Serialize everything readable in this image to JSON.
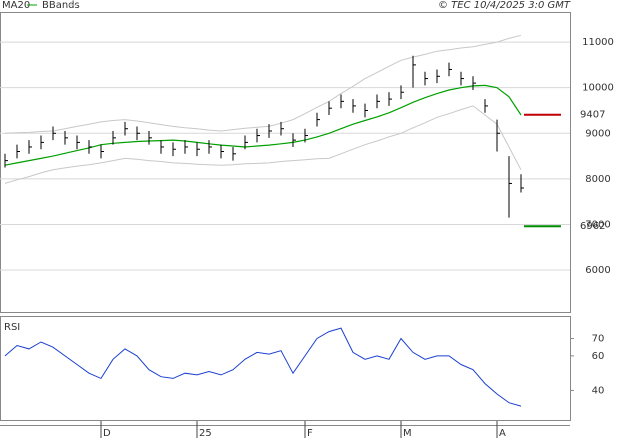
{
  "chart_data": [
    {
      "type": "ohlc",
      "source": "© TEC 10/4/2025 3:0 GMT",
      "categories": [
        null,
        null,
        null,
        null,
        null,
        null,
        null,
        null,
        "D",
        null,
        null,
        null,
        null,
        null,
        null,
        null,
        "25",
        null,
        null,
        null,
        null,
        null,
        null,
        null,
        null,
        "F",
        null,
        null,
        null,
        null,
        null,
        null,
        null,
        "M",
        null,
        null,
        null,
        null,
        null,
        null,
        null,
        "A",
        null,
        null
      ],
      "close": [
        8400,
        8600,
        8700,
        8800,
        9000,
        8900,
        8800,
        8700,
        8600,
        8900,
        9100,
        9000,
        8900,
        8700,
        8650,
        8700,
        8650,
        8700,
        8600,
        8550,
        8800,
        8950,
        9050,
        9100,
        8850,
        8950,
        9300,
        9550,
        9700,
        9600,
        9500,
        9700,
        9750,
        9900,
        10500,
        10200,
        10250,
        10400,
        10200,
        10100,
        9600,
        9000,
        7900,
        7800
      ],
      "high": [
        8550,
        8750,
        8850,
        8950,
        9150,
        9050,
        8950,
        8850,
        8750,
        9050,
        9250,
        9150,
        9050,
        8850,
        8800,
        8850,
        8800,
        8850,
        8750,
        8700,
        8950,
        9100,
        9200,
        9250,
        9000,
        9100,
        9450,
        9700,
        9850,
        9750,
        9650,
        9850,
        9900,
        10050,
        10700,
        10350,
        10400,
        10550,
        10350,
        10250,
        9750,
        9300,
        8500,
        8100
      ],
      "low": [
        8250,
        8450,
        8550,
        8650,
        8850,
        8750,
        8650,
        8550,
        8450,
        8750,
        8950,
        8850,
        8750,
        8550,
        8500,
        8550,
        8500,
        8550,
        8450,
        8400,
        8650,
        8800,
        8900,
        8950,
        8700,
        8800,
        9150,
        9400,
        9550,
        9450,
        9350,
        9550,
        9600,
        9750,
        10000,
        10050,
        10100,
        10250,
        10050,
        9950,
        9450,
        8600,
        7150,
        7700
      ],
      "color": "#000000",
      "series": [
        {
          "name": "MA20",
          "color": "#00a000",
          "values": [
            8300,
            8350,
            8400,
            8450,
            8500,
            8560,
            8620,
            8680,
            8750,
            8780,
            8800,
            8820,
            8830,
            8840,
            8850,
            8830,
            8800,
            8770,
            8740,
            8720,
            8700,
            8720,
            8740,
            8770,
            8800,
            8850,
            8920,
            9000,
            9100,
            9200,
            9280,
            9360,
            9450,
            9560,
            9680,
            9780,
            9870,
            9950,
            10000,
            10040,
            10050,
            10000,
            9800,
            9400
          ]
        },
        {
          "name": "BBands",
          "color": "#c8c8c8",
          "upper": [
            9000,
            9010,
            9020,
            9040,
            9050,
            9100,
            9150,
            9200,
            9250,
            9280,
            9300,
            9270,
            9230,
            9190,
            9150,
            9120,
            9100,
            9070,
            9050,
            9080,
            9110,
            9130,
            9150,
            9220,
            9300,
            9430,
            9570,
            9700,
            9870,
            10030,
            10200,
            10330,
            10470,
            10600,
            10670,
            10730,
            10800,
            10830,
            10870,
            10900,
            10950,
            11000,
            11080,
            11150
          ],
          "lower": [
            7900,
            7980,
            8050,
            8130,
            8200,
            8240,
            8280,
            8310,
            8350,
            8400,
            8450,
            8430,
            8400,
            8380,
            8350,
            8340,
            8320,
            8310,
            8300,
            8310,
            8330,
            8340,
            8350,
            8380,
            8400,
            8420,
            8440,
            8450,
            8550,
            8650,
            8750,
            8830,
            8920,
            9000,
            9120,
            9230,
            9350,
            9430,
            9520,
            9600,
            9400,
            9200,
            8700,
            8200
          ]
        }
      ],
      "levels": [
        {
          "value": 9407,
          "color": "#c00000"
        },
        {
          "value": 6962,
          "color": "#008c00"
        }
      ],
      "ylim": [
        5080,
        11660
      ],
      "yticks": [
        6000,
        7000,
        8000,
        9000,
        10000,
        11000
      ],
      "grid": true
    },
    {
      "type": "line",
      "title": "RSI",
      "color": "#1a3fd0",
      "values": [
        60,
        66,
        64,
        68,
        65,
        60,
        55,
        50,
        47,
        58,
        64,
        60,
        52,
        48,
        47,
        50,
        49,
        51,
        49,
        52,
        58,
        62,
        61,
        63,
        50,
        60,
        70,
        74,
        76,
        62,
        58,
        60,
        58,
        70,
        62,
        58,
        60,
        60,
        55,
        52,
        44,
        38,
        33,
        31
      ],
      "ylim": [
        23,
        83
      ],
      "yticks": [
        40,
        60,
        70
      ]
    }
  ]
}
